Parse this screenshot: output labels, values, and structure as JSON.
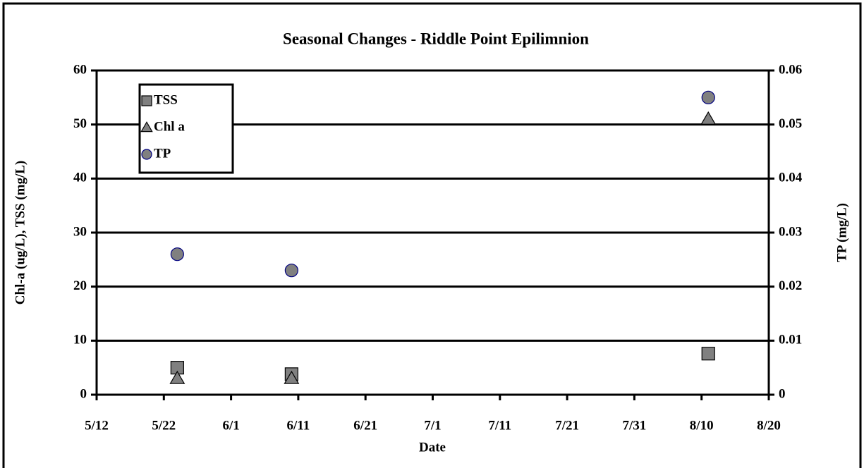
{
  "chart_data": {
    "type": "scatter",
    "title": "Seasonal Changes - Riddle Point Epilimnion",
    "x_label": "Date",
    "y_label": "Chl-a (ug/L), TSS (mg/L)",
    "y2_label": "TP (mg/L)",
    "x": [
      "5/24",
      "6/10",
      "8/11"
    ],
    "xlim": [
      "5/12",
      "8/20"
    ],
    "xticks": [
      "5/12",
      "5/22",
      "6/1",
      "6/11",
      "6/21",
      "7/1",
      "7/11",
      "7/21",
      "7/31",
      "8/10",
      "8/20"
    ],
    "ylim": [
      0,
      60
    ],
    "yticks": [
      0,
      10,
      20,
      30,
      40,
      50,
      60
    ],
    "y2lim": [
      0,
      0.06
    ],
    "y2ticks": [
      0,
      0.01,
      0.02,
      0.03,
      0.04,
      0.05,
      0.06
    ],
    "grid": true,
    "legend": "upper left",
    "series": [
      {
        "name": "TSS",
        "color": "#808080",
        "marker": "square",
        "values": [
          5,
          3.8,
          7.6
        ]
      },
      {
        "name": "Chl a",
        "color": "#808080",
        "marker": "triangle",
        "values": [
          3,
          3,
          51
        ]
      },
      {
        "name": "TP",
        "color": "#808080",
        "edge": "#000080",
        "marker": "circle",
        "axis": "y2",
        "values": [
          0.026,
          0.023,
          0.055
        ]
      }
    ]
  }
}
